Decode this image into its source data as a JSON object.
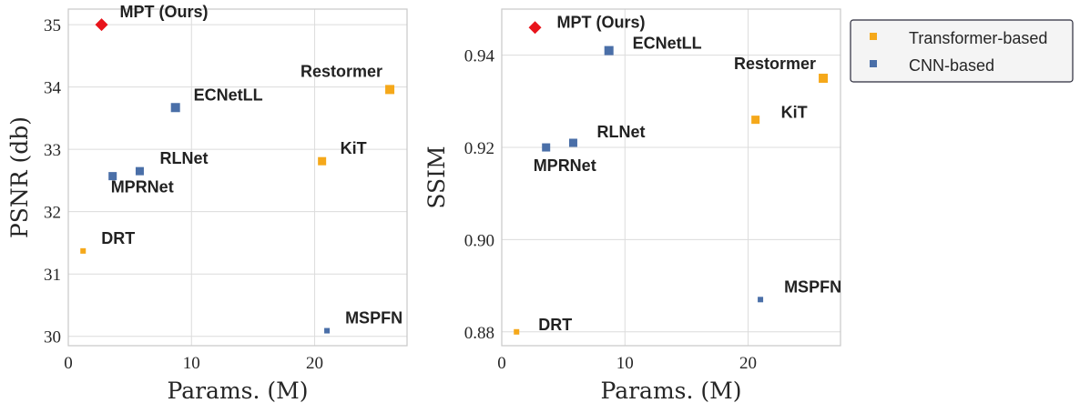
{
  "chart_data": [
    {
      "type": "scatter",
      "xlabel": "Params. (M)",
      "ylabel": "PSNR (db)",
      "xlim": [
        0,
        27.5
      ],
      "ylim": [
        29.85,
        35.25
      ],
      "xticks": [
        "0",
        "10",
        "20"
      ],
      "xtick_values": [
        0,
        10,
        20
      ],
      "yticks": [
        "30",
        "31",
        "32",
        "33",
        "34",
        "35"
      ],
      "ytick_values": [
        30,
        31,
        32,
        33,
        34,
        35
      ],
      "grid": true,
      "points": [
        {
          "label": "MPT (Ours)",
          "x": 2.7,
          "y": 35.0,
          "group": "ours"
        },
        {
          "label": "Restormer",
          "x": 26.1,
          "y": 33.96,
          "group": "transformer"
        },
        {
          "label": "ECNetLL",
          "x": 8.7,
          "y": 33.67,
          "group": "cnn"
        },
        {
          "label": "KiT",
          "x": 20.6,
          "y": 32.81,
          "group": "transformer"
        },
        {
          "label": "RLNet",
          "x": 5.8,
          "y": 32.65,
          "group": "cnn"
        },
        {
          "label": "MPRNet",
          "x": 3.6,
          "y": 32.57,
          "group": "cnn"
        },
        {
          "label": "DRT",
          "x": 1.2,
          "y": 31.37,
          "group": "transformer"
        },
        {
          "label": "MSPFN",
          "x": 21.0,
          "y": 30.09,
          "group": "cnn"
        }
      ]
    },
    {
      "type": "scatter",
      "xlabel": "Params. (M)",
      "ylabel": "SSIM",
      "xlim": [
        0,
        27.5
      ],
      "ylim": [
        0.877,
        0.95
      ],
      "xticks": [
        "0",
        "10",
        "20"
      ],
      "xtick_values": [
        0,
        10,
        20
      ],
      "yticks": [
        "0.88",
        "0.90",
        "0.92",
        "0.94"
      ],
      "ytick_values": [
        0.88,
        0.9,
        0.92,
        0.94
      ],
      "grid": true,
      "points": [
        {
          "label": "MPT (Ours)",
          "x": 2.7,
          "y": 0.946,
          "group": "ours"
        },
        {
          "label": "ECNetLL",
          "x": 8.7,
          "y": 0.941,
          "group": "cnn"
        },
        {
          "label": "Restormer",
          "x": 26.1,
          "y": 0.935,
          "group": "transformer"
        },
        {
          "label": "KiT",
          "x": 20.6,
          "y": 0.926,
          "group": "transformer"
        },
        {
          "label": "RLNet",
          "x": 5.8,
          "y": 0.921,
          "group": "cnn"
        },
        {
          "label": "MPRNet",
          "x": 3.6,
          "y": 0.92,
          "group": "cnn"
        },
        {
          "label": "MSPFN",
          "x": 21.0,
          "y": 0.887,
          "group": "cnn"
        },
        {
          "label": "DRT",
          "x": 1.2,
          "y": 0.88,
          "group": "transformer"
        }
      ]
    }
  ],
  "legend": {
    "placement": "upper-right outside",
    "entries": [
      {
        "label": "Transformer-based",
        "group": "transformer"
      },
      {
        "label": "CNN-based",
        "group": "cnn"
      }
    ]
  },
  "colors": {
    "ours": "#e8141b",
    "transformer": "#f5a81a",
    "cnn": "#4a6fa8"
  }
}
